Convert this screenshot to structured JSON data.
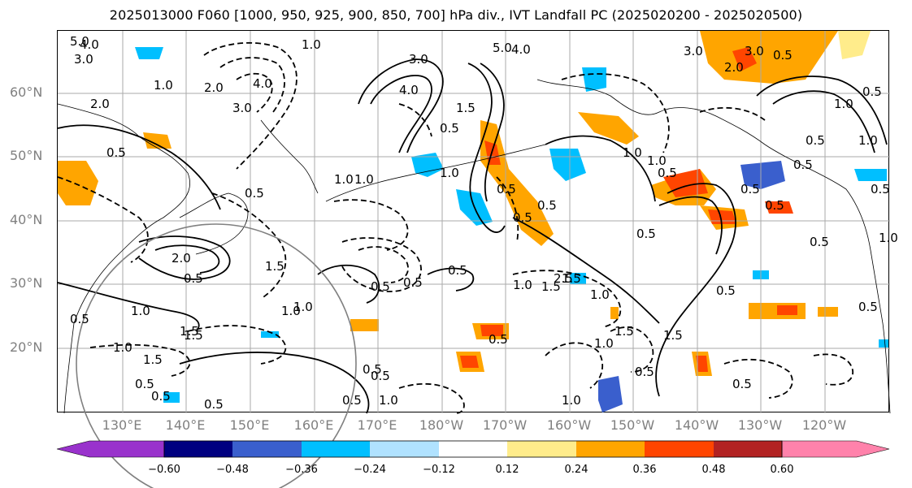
{
  "title": "2025013000 F060 [1000, 950, 925, 900, 850, 700] hPa div., IVT Landfall PC (2025020200 - 2025020500)",
  "lat_labels": [
    "60°N",
    "50°N",
    "40°N",
    "30°N",
    "20°N"
  ],
  "lon_labels": [
    "130°E",
    "140°E",
    "150°E",
    "160°E",
    "170°E",
    "180°W",
    "170°W",
    "160°W",
    "150°W",
    "140°W",
    "130°W",
    "120°W"
  ],
  "colorbar": {
    "colors": [
      "#9932CC",
      "#000080",
      "#3A5FCD",
      "#00BFFF",
      "#B0E2FF",
      "#FFFFFF",
      "#FFEC8B",
      "#FFA500",
      "#FF4500",
      "#B22222",
      "#FF82AB"
    ],
    "ticks": [
      "−0.60",
      "−0.48",
      "−0.36",
      "−0.24",
      "−0.12",
      "0.12",
      "0.24",
      "0.36",
      "0.48",
      "0.60"
    ]
  },
  "contour_labels": [
    "5.0",
    "4.0",
    "3.0",
    "2.0",
    "1.0",
    "1.0",
    "4.0",
    "3.0",
    "2.0",
    "3.0",
    "4.0",
    "5.0",
    "4.0",
    "3.0",
    "2.0",
    "1.5",
    "1.0",
    "0.5",
    "0.5",
    "1.5",
    "1.0",
    "0.5",
    "0.5",
    "0.5",
    "1.0",
    "0.5",
    "1.0",
    "0.5",
    "1.5",
    "0.5",
    "0.5",
    "2.0",
    "1.5",
    "1.0",
    "0.5",
    "1.0",
    "1.5",
    "1.0",
    "0.5",
    "0.5",
    "1.0",
    "1.5",
    "0.5",
    "0.5",
    "0.5",
    "1.5",
    "1.0",
    "0.5",
    "2.5",
    "1.0",
    "1.0",
    "0.5",
    "0.5",
    "0.5",
    "0.5",
    "0.5",
    "1.0",
    "0.5",
    "1.5",
    "3.0",
    "1.0",
    "0.5",
    "0.5",
    "1.0",
    "0.5",
    "1.0",
    "0.5",
    "0.5",
    "0.5",
    "0.5",
    "1.5",
    "1.0",
    "0.5",
    "0.5",
    "1.0",
    "0.5"
  ]
}
